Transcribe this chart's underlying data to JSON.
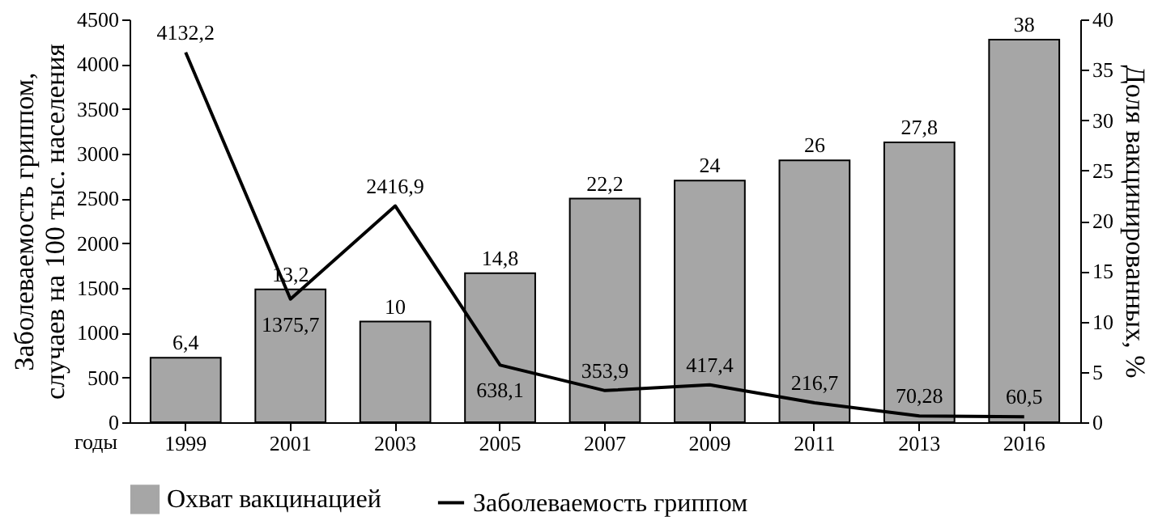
{
  "chart_data": {
    "type": "bar",
    "xlabel": "годы",
    "ylabel": "Заболеваемость гриппом,\nслучаев на 100 тыс. населения",
    "y2label": "Доля вакцинированных, %",
    "categories": [
      "1999",
      "2001",
      "2003",
      "2005",
      "2007",
      "2009",
      "2011",
      "2013",
      "2016"
    ],
    "series": [
      {
        "name": "Охват вакцинацией",
        "type": "bar",
        "axis": "y2",
        "color": "#a6a6a6",
        "values": [
          6.4,
          13.2,
          10,
          14.8,
          22.2,
          24,
          26,
          27.8,
          38
        ],
        "value_labels": [
          "6,4",
          "13,2",
          "10",
          "14,8",
          "22,2",
          "24",
          "26",
          "27,8",
          "38"
        ]
      },
      {
        "name": "Заболеваемость гриппом",
        "type": "line",
        "color": "#000000",
        "values": [
          4132.2,
          1375.7,
          2416.9,
          638.1,
          353.9,
          417.4,
          216.7,
          70.28,
          60.5
        ],
        "value_labels": [
          "4132,2",
          "1375,7",
          "2416,9",
          "638,1",
          "353,9",
          "417,4",
          "216,7",
          "70,28",
          "60,5"
        ]
      }
    ],
    "ylim": [
      0,
      4500
    ],
    "yticks": [
      0,
      500,
      1000,
      1500,
      2000,
      2500,
      3000,
      3500,
      4000,
      4500
    ],
    "y2lim": [
      0,
      40
    ],
    "y2ticks": [
      0,
      5,
      10,
      15,
      20,
      25,
      30,
      35,
      40
    ],
    "data_labels": true,
    "legend": "bottom",
    "grid": false,
    "marker": "none"
  }
}
